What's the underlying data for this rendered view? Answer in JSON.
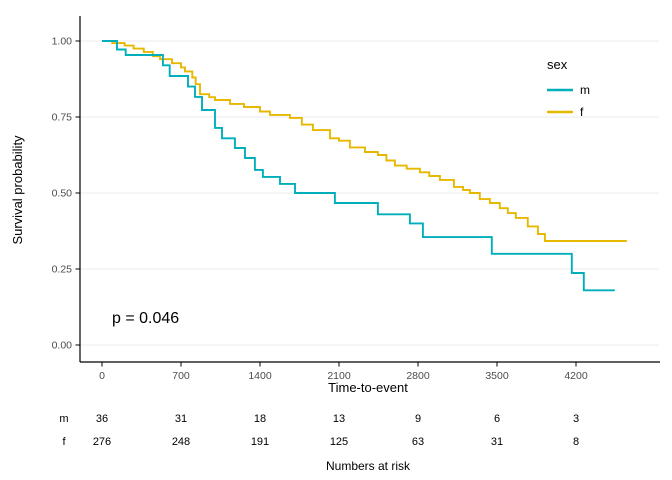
{
  "chart_data": {
    "type": "line",
    "subtype": "kaplan-meier-step",
    "title": "",
    "xlabel": "Time-to-event",
    "ylabel": "Survival probability",
    "annotation": "p = 0.046",
    "xlim": [
      0,
      4940
    ],
    "ylim": [
      0.0,
      1.0
    ],
    "grid": "horizontal-only",
    "x_ticks": [
      0,
      700,
      1400,
      2100,
      2800,
      3500,
      4200
    ],
    "y_ticks": [
      {
        "label": "1.00",
        "value": 1.0
      },
      {
        "label": "0.75",
        "value": 0.75
      },
      {
        "label": "0.50",
        "value": 0.5
      },
      {
        "label": "0.25",
        "value": 0.25
      },
      {
        "label": "0.00",
        "value": 0.0
      }
    ],
    "legend": {
      "title": "sex",
      "position": "inside-top-right",
      "entries": [
        {
          "label": "m",
          "color": "#00AFBB"
        },
        {
          "label": "f",
          "color": "#E7B800"
        }
      ]
    },
    "series": [
      {
        "name": "f",
        "color": "#E7B800",
        "end_time": 4650,
        "steps": [
          [
            0,
            1.0
          ],
          [
            90,
            0.993
          ],
          [
            200,
            0.985
          ],
          [
            280,
            0.975
          ],
          [
            370,
            0.964
          ],
          [
            450,
            0.95
          ],
          [
            514,
            0.94
          ],
          [
            620,
            0.927
          ],
          [
            700,
            0.913
          ],
          [
            735,
            0.9
          ],
          [
            800,
            0.88
          ],
          [
            830,
            0.858
          ],
          [
            868,
            0.825
          ],
          [
            950,
            0.815
          ],
          [
            1001,
            0.806
          ],
          [
            1134,
            0.793
          ],
          [
            1258,
            0.783
          ],
          [
            1400,
            0.768
          ],
          [
            1488,
            0.757
          ],
          [
            1665,
            0.747
          ],
          [
            1770,
            0.725
          ],
          [
            1869,
            0.707
          ],
          [
            2020,
            0.68
          ],
          [
            2100,
            0.672
          ],
          [
            2197,
            0.65
          ],
          [
            2330,
            0.635
          ],
          [
            2445,
            0.625
          ],
          [
            2520,
            0.607
          ],
          [
            2595,
            0.59
          ],
          [
            2700,
            0.58
          ],
          [
            2817,
            0.568
          ],
          [
            2900,
            0.556
          ],
          [
            2994,
            0.543
          ],
          [
            3118,
            0.52
          ],
          [
            3200,
            0.51
          ],
          [
            3260,
            0.5
          ],
          [
            3348,
            0.48
          ],
          [
            3437,
            0.467
          ],
          [
            3525,
            0.45
          ],
          [
            3596,
            0.434
          ],
          [
            3667,
            0.418
          ],
          [
            3773,
            0.39
          ],
          [
            3862,
            0.365
          ],
          [
            3924,
            0.342
          ]
        ]
      },
      {
        "name": "m",
        "color": "#00AFBB",
        "end_time": 4544,
        "steps": [
          [
            0,
            1.0
          ],
          [
            133,
            0.972
          ],
          [
            210,
            0.954
          ],
          [
            540,
            0.92
          ],
          [
            600,
            0.885
          ],
          [
            762,
            0.85
          ],
          [
            824,
            0.816
          ],
          [
            886,
            0.773
          ],
          [
            1001,
            0.714
          ],
          [
            1063,
            0.68
          ],
          [
            1178,
            0.648
          ],
          [
            1267,
            0.615
          ],
          [
            1355,
            0.576
          ],
          [
            1426,
            0.553
          ],
          [
            1577,
            0.53
          ],
          [
            1710,
            0.5
          ],
          [
            2064,
            0.467
          ],
          [
            2445,
            0.43
          ],
          [
            2728,
            0.4
          ],
          [
            2843,
            0.355
          ],
          [
            3454,
            0.3
          ],
          [
            4163,
            0.237
          ],
          [
            4269,
            0.18
          ]
        ]
      }
    ],
    "risk_table": {
      "caption": "Numbers at risk",
      "times": [
        0,
        700,
        1400,
        2100,
        2800,
        3500,
        4200
      ],
      "rows": [
        {
          "label": "m",
          "counts": [
            36,
            31,
            18,
            13,
            9,
            6,
            3
          ]
        },
        {
          "label": "f",
          "counts": [
            276,
            248,
            191,
            125,
            63,
            31,
            8
          ]
        }
      ]
    },
    "colors": {
      "gridline": "#ebebeb",
      "axis": "#000000",
      "tick_label": "#4d4d4d"
    }
  }
}
